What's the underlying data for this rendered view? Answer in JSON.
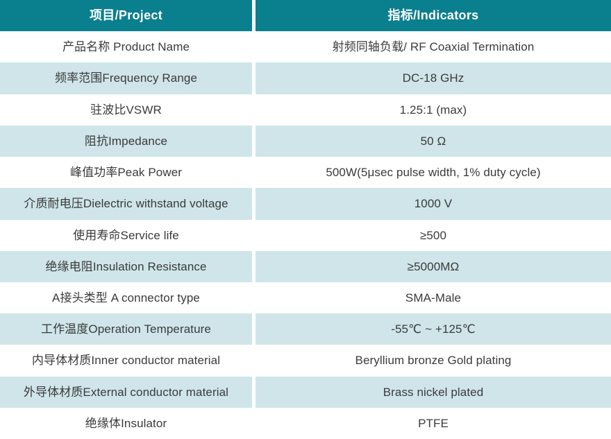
{
  "colors": {
    "header_bg": "#0A7F8E",
    "alt_row_bg": "#CFE5EA",
    "body_text": "#3A3A3A",
    "header_text": "#FFFFFF"
  },
  "table": {
    "header": {
      "project": "项目/Project",
      "indicators": "指标/Indicators"
    },
    "rows": [
      {
        "project": "产品名称 Product Name",
        "indicator": "射频同轴负载/ RF Coaxial Termination"
      },
      {
        "project": "频率范围Frequency Range",
        "indicator": "DC-18 GHz"
      },
      {
        "project": "驻波比VSWR",
        "indicator": "1.25:1 (max)"
      },
      {
        "project": "阻抗Impedance",
        "indicator": "50 Ω"
      },
      {
        "project": "峰值功率Peak Power",
        "indicator": "500W(5μsec pulse width, 1% duty cycle)"
      },
      {
        "project": "介质耐电压Dielectric withstand voltage",
        "indicator": "1000 V"
      },
      {
        "project": "使用寿命Service life",
        "indicator": "≥500"
      },
      {
        "project": "绝缘电阻Insulation Resistance",
        "indicator": "≥5000MΩ"
      },
      {
        "project": "A接头类型 A connector type",
        "indicator": "SMA-Male"
      },
      {
        "project": "工作温度Operation Temperature",
        "indicator": "-55℃ ~ +125℃"
      },
      {
        "project": "内导体材质Inner conductor material",
        "indicator": "Beryllium bronze Gold plating"
      },
      {
        "project": "外导体材质External conductor material",
        "indicator": "Brass nickel plated"
      },
      {
        "project": "绝缘体Insulator",
        "indicator": "PTFE"
      }
    ]
  }
}
